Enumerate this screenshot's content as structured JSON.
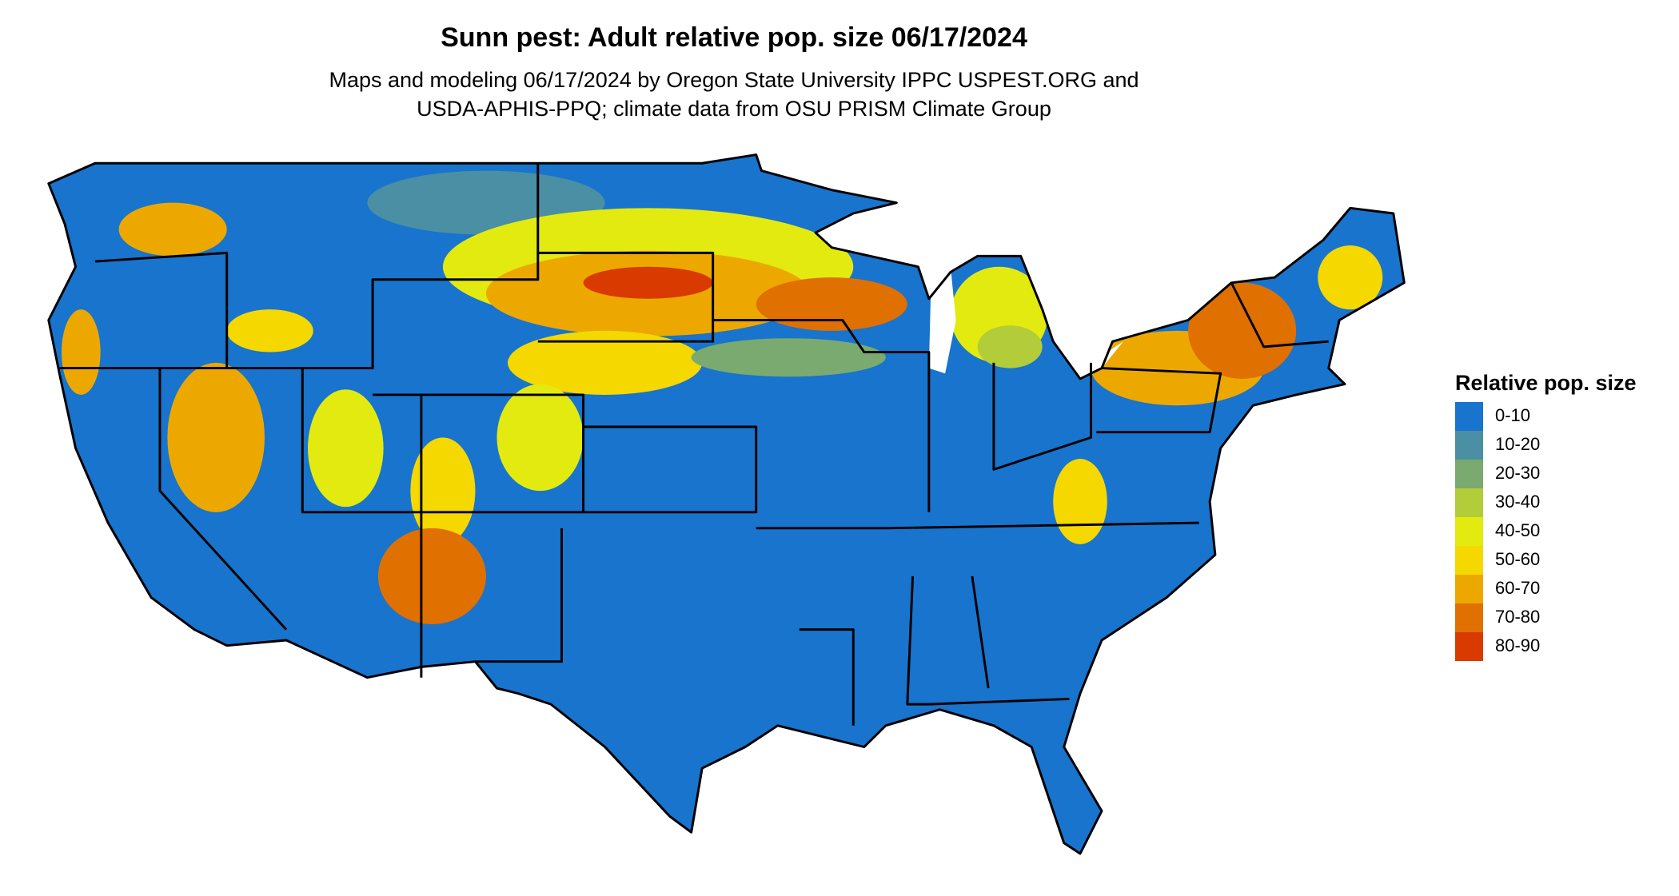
{
  "title": "Sunn pest: Adult relative pop. size 06/17/2024",
  "subtitle": [
    "Maps and modeling 06/17/2024 by Oregon State University IPPC USPEST.ORG and",
    "USDA-APHIS-PPQ; climate data from OSU PRISM Climate Group"
  ],
  "legend": {
    "title": "Relative pop. size",
    "items": [
      {
        "label": "0-10",
        "color": "#1874cd"
      },
      {
        "label": "10-20",
        "color": "#4a8fa4"
      },
      {
        "label": "20-30",
        "color": "#7aaa70"
      },
      {
        "label": "30-40",
        "color": "#b2cc3a"
      },
      {
        "label": "40-50",
        "color": "#e3ea10"
      },
      {
        "label": "50-60",
        "color": "#f5d800"
      },
      {
        "label": "60-70",
        "color": "#eda800"
      },
      {
        "label": "70-80",
        "color": "#e07000"
      },
      {
        "label": "80-90",
        "color": "#d83a00"
      }
    ]
  }
}
